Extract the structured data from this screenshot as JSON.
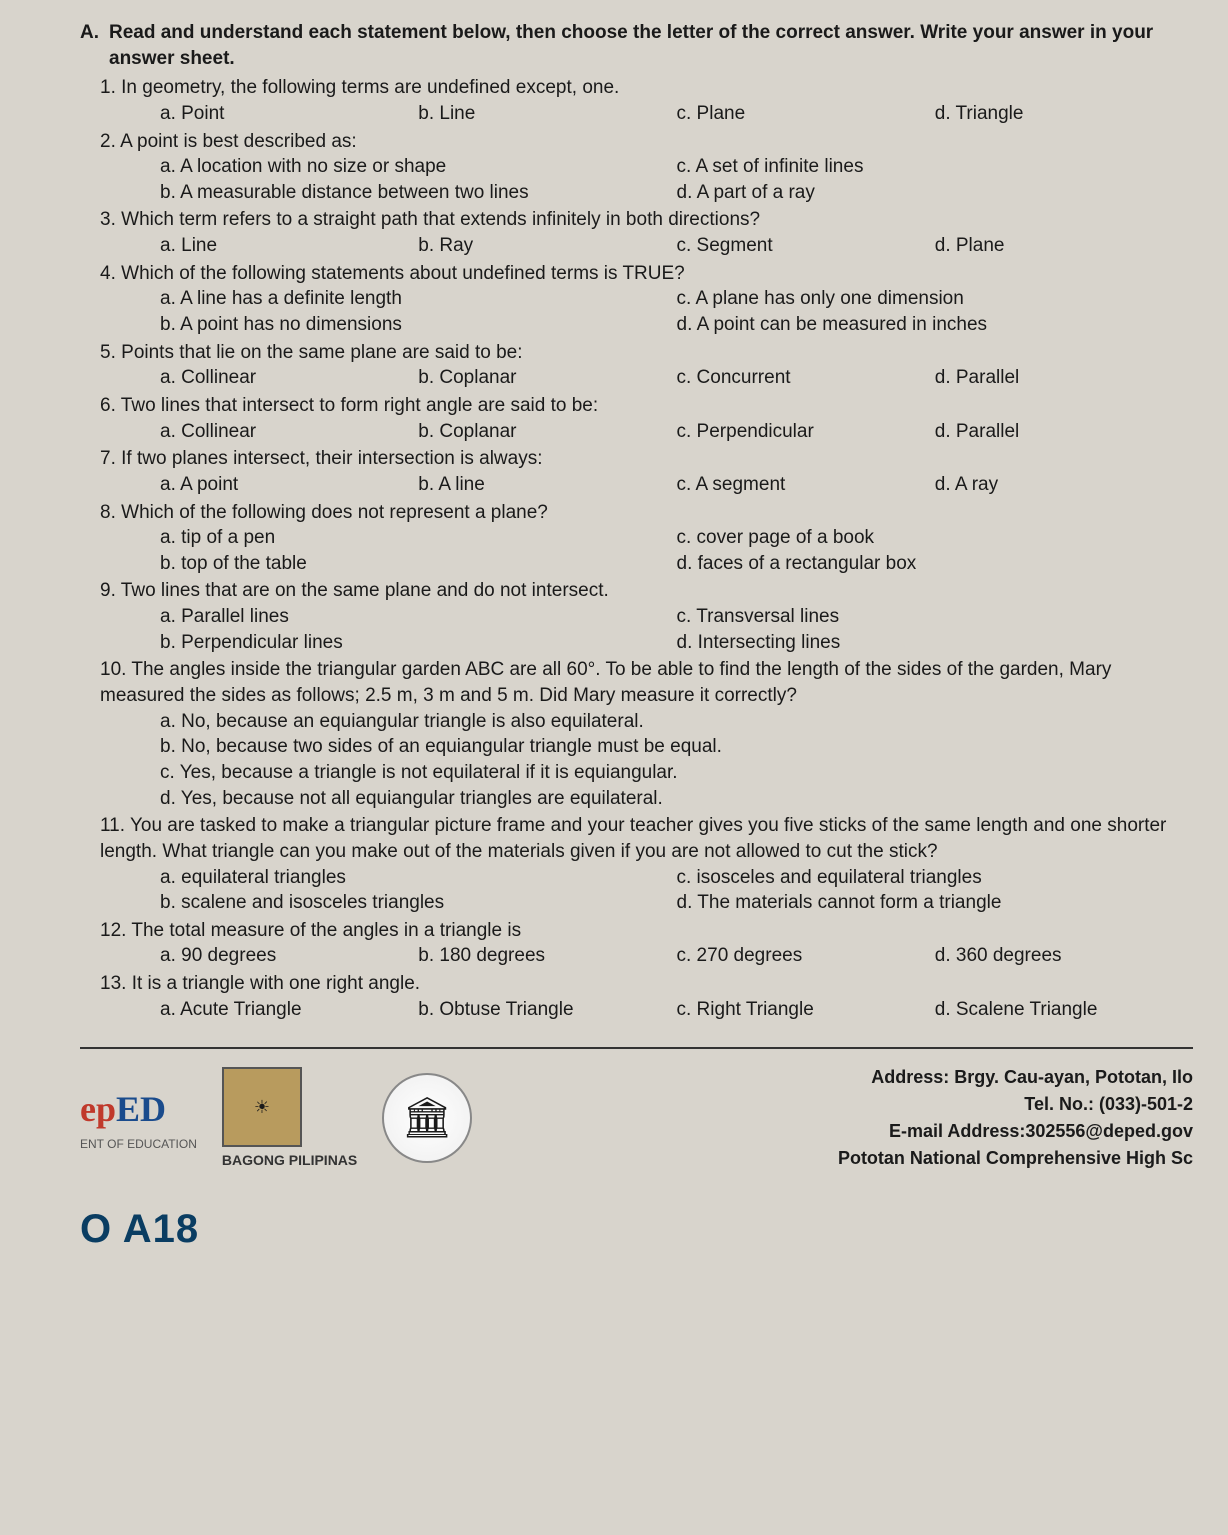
{
  "header": {
    "letter": "A.",
    "text": "Read and understand each statement below, then choose the letter of the correct answer. Write your answer in your answer sheet."
  },
  "questions": [
    {
      "num": "1.",
      "text": "In geometry, the following terms are undefined except, one.",
      "opts": {
        "a": "a. Point",
        "b": "b. Line",
        "c": "c. Plane",
        "d": "d. Triangle"
      },
      "layout": "row"
    },
    {
      "num": "2.",
      "text": "A point is best described as:",
      "opts": {
        "a": "a. A location with no size or shape",
        "b": "b. A measurable distance between two lines",
        "c": "c. A set of infinite lines",
        "d": "d. A part of a ray"
      },
      "layout": "2col"
    },
    {
      "num": "3.",
      "text": "Which term refers to a straight path that extends infinitely in both directions?",
      "opts": {
        "a": "a. Line",
        "b": "b. Ray",
        "c": "c. Segment",
        "d": "d. Plane"
      },
      "layout": "row"
    },
    {
      "num": "4.",
      "text": "Which of the following statements about undefined terms is TRUE?",
      "opts": {
        "a": "a. A line has a definite length",
        "b": "b. A point has no dimensions",
        "c": "c. A plane has only one dimension",
        "d": "d. A point can be measured in inches"
      },
      "layout": "2col"
    },
    {
      "num": "5.",
      "text": "Points that lie on the same plane are said to be:",
      "opts": {
        "a": "a. Collinear",
        "b": "b. Coplanar",
        "c": "c. Concurrent",
        "d": "d. Parallel"
      },
      "layout": "row"
    },
    {
      "num": "6.",
      "text": "Two lines that intersect to form right angle are said to be:",
      "opts": {
        "a": "a. Collinear",
        "b": "b. Coplanar",
        "c": "c. Perpendicular",
        "d": "d. Parallel"
      },
      "layout": "row"
    },
    {
      "num": "7.",
      "text": "If two planes intersect, their intersection is always:",
      "opts": {
        "a": "a. A point",
        "b": "b. A line",
        "c": "c. A segment",
        "d": "d. A ray"
      },
      "layout": "row"
    },
    {
      "num": "8.",
      "text": "Which of the following does not represent a plane?",
      "opts": {
        "a": "a. tip of a pen",
        "b": "b. top of the table",
        "c": "c. cover page of a book",
        "d": "d. faces of a rectangular box"
      },
      "layout": "2col"
    },
    {
      "num": "9.",
      "text": "Two lines that are on the same plane and do not intersect.",
      "opts": {
        "a": "a. Parallel lines",
        "b": "b. Perpendicular lines",
        "c": "c. Transversal lines",
        "d": "d. Intersecting lines"
      },
      "layout": "2col"
    },
    {
      "num": "10.",
      "text": "The angles inside the triangular garden ABC are all 60°. To be able to find the length of the sides of the garden, Mary measured the sides as follows; 2.5 m, 3 m and 5 m. Did Mary measure it correctly?",
      "opts": {
        "a": "a. No, because an equiangular triangle is also equilateral.",
        "b": "b. No, because two sides of an equiangular triangle must be equal.",
        "c": "c. Yes, because a triangle is not equilateral if it is equiangular.",
        "d": "d. Yes, because not all equiangular triangles are equilateral."
      },
      "layout": "col"
    },
    {
      "num": "11.",
      "text": "You are tasked to make a triangular picture frame and your teacher gives you five sticks of the same length and one shorter length. What triangle can you make out of the materials given if you are not allowed to cut the stick?",
      "opts": {
        "a": "a. equilateral triangles",
        "b": "b. scalene and isosceles triangles",
        "c": "c. isosceles and equilateral triangles",
        "d": "d. The materials cannot form a triangle"
      },
      "layout": "2col"
    },
    {
      "num": "12.",
      "text": "The total measure of the angles in a triangle is",
      "opts": {
        "a": "a. 90 degrees",
        "b": "b. 180 degrees",
        "c": "c. 270 degrees",
        "d": "d. 360 degrees"
      },
      "layout": "row"
    },
    {
      "num": "13.",
      "text": "It is a triangle with one right angle.",
      "opts": {
        "a": "a. Acute Triangle",
        "b": "b. Obtuse Triangle",
        "c": "c. Right Triangle",
        "d": "d. Scalene Triangle"
      },
      "layout": "row"
    }
  ],
  "footer": {
    "ed_logo": "epED",
    "sub_ed": "ENT OF EDUCATION",
    "bagong": "BAGONG PILIPINAS",
    "address1": "Address: Brgy. Cau-ayan, Pototan, Ilo",
    "address2": "Tel. No.: (033)-501-2",
    "address3": "E-mail Address:302556@deped.gov",
    "address4": "Pototan National Comprehensive High Sc"
  },
  "bottom": "O A18"
}
